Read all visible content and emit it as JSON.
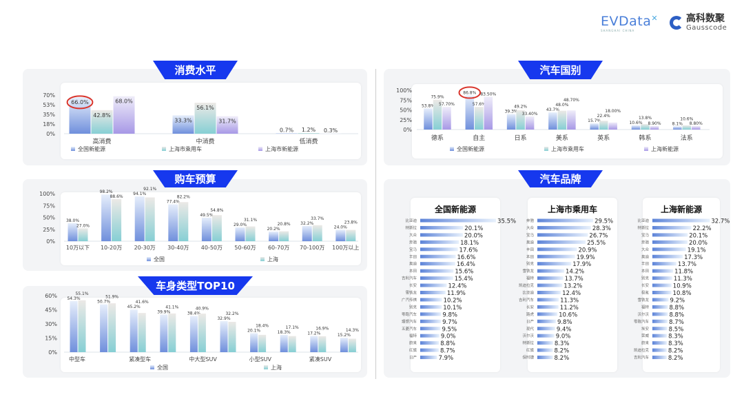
{
  "logos": {
    "evdata": "EVData",
    "evdata_sub": "SHANGHAI CHINA",
    "gauss_cn": "高科数聚",
    "gauss_en": "Gausscode"
  },
  "colors": {
    "tab": "#1638ee",
    "series_blue": "#7d9ce3",
    "series_teal": "#8fd2d6",
    "series_purple": "#ab9fe8",
    "highlight": "#d9342b"
  },
  "chart_data": [
    {
      "id": "consumption",
      "title": "消费水平",
      "type": "bar",
      "categories": [
        "高消费",
        "中消费",
        "低消费"
      ],
      "yticks": [
        "70%",
        "53%",
        "35%",
        "18%",
        "0%"
      ],
      "ylim": [
        0,
        70
      ],
      "series": [
        {
          "name": "全国新能源",
          "values": [
            66.0,
            33.3,
            0.7
          ],
          "labels": [
            "66.0%",
            "33.3%",
            "0.7%"
          ]
        },
        {
          "name": "上海市乘用车",
          "values": [
            42.8,
            56.1,
            1.2
          ],
          "labels": [
            "42.8%",
            "56.1%",
            "1.2%"
          ]
        },
        {
          "name": "上海市新能源",
          "values": [
            68.0,
            31.7,
            0.3
          ],
          "labels": [
            "68.0%",
            "31.7%",
            "0.3%"
          ]
        }
      ],
      "highlight": {
        "series": 0,
        "index": 0
      }
    },
    {
      "id": "budget",
      "title": "购车预算",
      "type": "bar",
      "categories": [
        "10万以下",
        "10-20万",
        "20-30万",
        "30-40万",
        "40-50万",
        "50-60万",
        "60-70万",
        "70-100万",
        "100万以上"
      ],
      "yticks": [
        "100%",
        "75%",
        "50%",
        "25%",
        "0%"
      ],
      "ylim": [
        0,
        100
      ],
      "series": [
        {
          "name": "全国",
          "values": [
            38.0,
            98.2,
            94.1,
            77.4,
            49.5,
            29.0,
            20.2,
            32.2,
            24.0
          ],
          "labels": [
            "38.0%",
            "98.2%",
            "94.1%",
            "77.4%",
            "49.5%",
            "29.0%",
            "20.2%",
            "32.2%",
            "24.0%"
          ]
        },
        {
          "name": "上海",
          "values": [
            27.0,
            88.6,
            92.1,
            82.2,
            54.8,
            31.1,
            20.8,
            33.7,
            23.8
          ],
          "labels": [
            "27.0%",
            "88.6%",
            "92.1%",
            "82.2%",
            "54.8%",
            "31.1%",
            "20.8%",
            "33.7%",
            "23.8%"
          ]
        }
      ]
    },
    {
      "id": "body_type",
      "title": "车身类型TOP10",
      "type": "bar",
      "categories": [
        "中型车",
        "",
        "紧凑型车",
        "",
        "中大型SUV",
        "",
        "小型SUV",
        "",
        "紧凑SUV",
        ""
      ],
      "yticks": [
        "60%",
        "45%",
        "30%",
        "15%",
        "0%"
      ],
      "ylim": [
        0,
        60
      ],
      "series": [
        {
          "name": "全国",
          "values": [
            54.3,
            50.7,
            45.2,
            39.9,
            38.4,
            32.9,
            20.1,
            18.3,
            17.2,
            15.2
          ],
          "labels": [
            "54.3%",
            "50.7%",
            "45.2%",
            "39.9%",
            "38.4%",
            "32.9%",
            "20.1%",
            "18.3%",
            "17.2%",
            "15.2%"
          ]
        },
        {
          "name": "上海",
          "values": [
            55.1,
            51.9,
            41.6,
            41.1,
            40.9,
            32.2,
            18.4,
            17.1,
            16.9,
            14.3
          ],
          "labels": [
            "55.1%",
            "51.9%",
            "41.6%",
            "41.1%",
            "40.9%",
            "32.2%",
            "18.4%",
            "17.1%",
            "16.9%",
            "14.3%"
          ]
        }
      ]
    },
    {
      "id": "country",
      "title": "汽车国别",
      "type": "bar",
      "categories": [
        "德系",
        "自主",
        "日系",
        "美系",
        "英系",
        "韩系",
        "法系"
      ],
      "yticks": [
        "100%",
        "75%",
        "50%",
        "25%",
        "0%"
      ],
      "ylim": [
        0,
        100
      ],
      "series": [
        {
          "name": "全国新能源",
          "values": [
            53.8,
            86.8,
            39.3,
            43.7,
            15.7,
            10.6,
            8.1
          ],
          "labels": [
            "53.8%",
            "86.8%",
            "39.3%",
            "43.7%",
            "15.7%",
            "10.6%",
            "8.1%"
          ]
        },
        {
          "name": "上海市乘用车",
          "values": [
            75.9,
            57.6,
            49.2,
            48.0,
            22.4,
            13.8,
            10.6
          ],
          "labels": [
            "75.9%",
            "57.6%",
            "49.2%",
            "48.0%",
            "22.4%",
            "13.8%",
            "10.6%"
          ]
        },
        {
          "name": "上海新能源",
          "values": [
            57.7,
            83.5,
            33.4,
            48.7,
            18.0,
            8.9,
            8.8
          ],
          "labels": [
            "57.70%",
            "83.50%",
            "33.40%",
            "48.70%",
            "18.00%",
            "8.90%",
            "8.80%"
          ]
        }
      ],
      "highlight": {
        "series": 0,
        "index": 1
      }
    },
    {
      "id": "brand",
      "title": "汽车品牌",
      "type": "bar",
      "groups": [
        {
          "title": "全国新能源",
          "brands": [
            "比亚迪",
            "特斯拉",
            "大众",
            "奔驰",
            "宝马",
            "丰田",
            "奥迪",
            "本田",
            "吉利汽车",
            "长安",
            "雪铁龙",
            "广汽传祺",
            "别克",
            "零跑汽车",
            "理想汽车",
            "五菱汽车",
            "福特",
            "蔚来",
            "红旗",
            "日产"
          ],
          "values": [
            35.5,
            20.1,
            20.0,
            18.1,
            17.6,
            16.6,
            16.4,
            15.6,
            15.4,
            12.4,
            11.9,
            10.2,
            10.1,
            9.8,
            9.7,
            9.5,
            9.0,
            8.8,
            8.7,
            7.9
          ]
        },
        {
          "title": "上海市乘用车",
          "brands": [
            "奔驰",
            "大众",
            "宝马",
            "奥迪",
            "丰田",
            "本田",
            "别克",
            "雪铁龙",
            "福特",
            "凯迪拉克",
            "比亚迪",
            "吉利汽车",
            "长安",
            "路虎",
            "日产",
            "现代",
            "沃尔沃",
            "特斯拉",
            "红旗",
            "保时捷"
          ],
          "values": [
            29.5,
            28.3,
            26.7,
            25.5,
            20.9,
            19.9,
            17.9,
            14.2,
            13.7,
            13.2,
            12.4,
            11.3,
            11.2,
            10.6,
            9.8,
            9.4,
            9.0,
            8.3,
            8.2,
            8.2
          ]
        },
        {
          "title": "上海新能源",
          "brands": [
            "比亚迪",
            "特斯拉",
            "宝马",
            "奔驰",
            "大众",
            "奥迪",
            "丰田",
            "本田",
            "别克",
            "长安",
            "极氪",
            "雪铁龙",
            "福特",
            "沃尔沃",
            "零跑汽车",
            "埃安",
            "荣威",
            "蔚来",
            "凯迪拉克",
            "吉利汽车"
          ],
          "values": [
            32.7,
            22.2,
            20.1,
            20.0,
            19.1,
            17.3,
            13.7,
            11.8,
            11.3,
            10.9,
            10.8,
            9.2,
            8.8,
            8.8,
            8.7,
            8.5,
            8.3,
            8.3,
            8.2,
            8.2
          ]
        }
      ]
    }
  ]
}
